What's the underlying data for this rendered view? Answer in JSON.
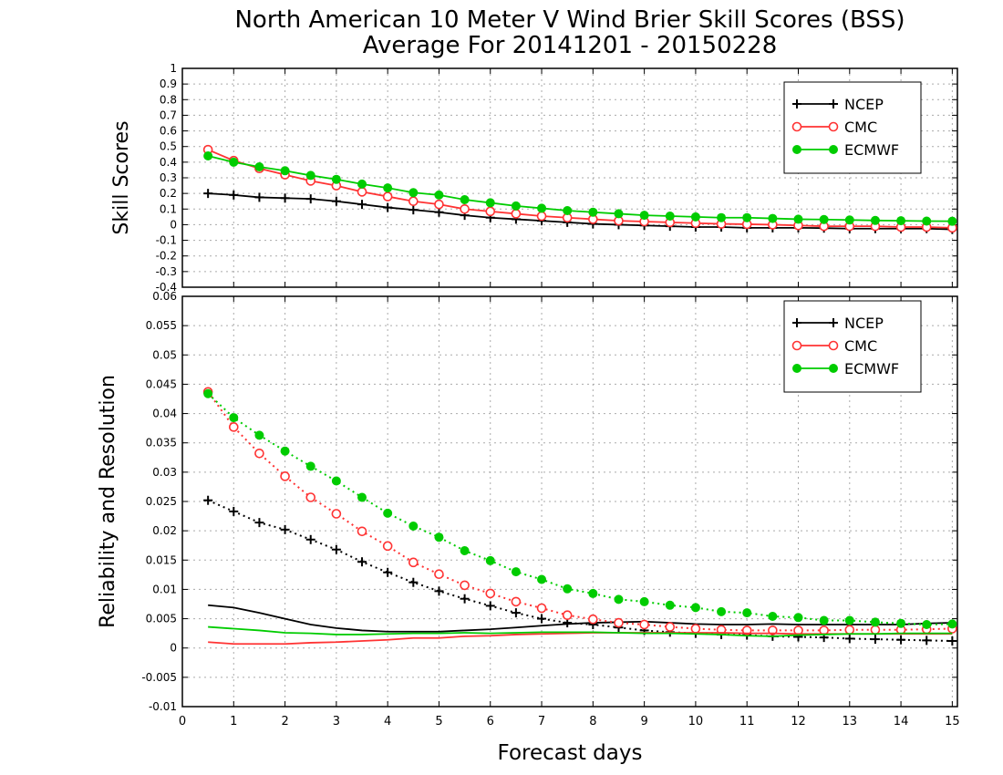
{
  "figure": {
    "title_line1": "North American 10 Meter V Wind Brier Skill Scores (BSS)",
    "title_line2": "Average For 20141201 - 20150228",
    "xlabel": "Forecast days",
    "x_ticks": [
      0,
      1,
      2,
      3,
      4,
      5,
      6,
      7,
      8,
      9,
      10,
      11,
      12,
      13,
      14,
      15
    ],
    "xlim": [
      0,
      15.1
    ]
  },
  "chart_data": [
    {
      "type": "line",
      "panel": "top",
      "ylabel": "Skill Scores",
      "ylim": [
        -0.4,
        1
      ],
      "y_ticks": [
        -0.4,
        -0.3,
        -0.2,
        -0.1,
        0,
        0.1,
        0.2,
        0.3,
        0.4,
        0.5,
        0.6,
        0.7,
        0.8,
        0.9,
        1
      ],
      "y_tick_labels": [
        "-0.4",
        "-0.3",
        "-0.2",
        "-0.1",
        "0",
        "0.1",
        "0.2",
        "0.3",
        "0.4",
        "0.5",
        "0.6",
        "0.7",
        "0.8",
        "0.9",
        "1"
      ],
      "grid": true,
      "legend": "top-right",
      "x": [
        0.5,
        1,
        1.5,
        2,
        2.5,
        3,
        3.5,
        4,
        4.5,
        5,
        5.5,
        6,
        6.5,
        7,
        7.5,
        8,
        8.5,
        9,
        9.5,
        10,
        10.5,
        11,
        11.5,
        12,
        12.5,
        13,
        13.5,
        14,
        14.5,
        15
      ],
      "series": [
        {
          "name": "NCEP",
          "color": "#000000",
          "marker": "plus",
          "dash": "solid",
          "values": [
            0.2,
            0.19,
            0.175,
            0.17,
            0.165,
            0.15,
            0.13,
            0.11,
            0.095,
            0.08,
            0.06,
            0.045,
            0.035,
            0.025,
            0.015,
            0.005,
            0,
            -0.005,
            -0.01,
            -0.015,
            -0.015,
            -0.02,
            -0.02,
            -0.02,
            -0.022,
            -0.025,
            -0.025,
            -0.025,
            -0.025,
            -0.03
          ]
        },
        {
          "name": "CMC",
          "color": "#ff3333",
          "marker": "open-circle",
          "dash": "solid",
          "values": [
            0.48,
            0.41,
            0.36,
            0.32,
            0.28,
            0.25,
            0.21,
            0.18,
            0.15,
            0.13,
            0.1,
            0.085,
            0.07,
            0.055,
            0.045,
            0.035,
            0.025,
            0.02,
            0.015,
            0.01,
            0.005,
            0.003,
            0,
            -0.005,
            -0.01,
            -0.01,
            -0.01,
            -0.015,
            -0.015,
            -0.02
          ]
        },
        {
          "name": "ECMWF",
          "color": "#00cc00",
          "marker": "filled-circle",
          "dash": "solid",
          "values": [
            0.44,
            0.4,
            0.37,
            0.345,
            0.315,
            0.29,
            0.26,
            0.235,
            0.205,
            0.19,
            0.16,
            0.14,
            0.12,
            0.105,
            0.09,
            0.08,
            0.07,
            0.06,
            0.055,
            0.05,
            0.045,
            0.045,
            0.04,
            0.035,
            0.033,
            0.03,
            0.027,
            0.025,
            0.023,
            0.022
          ]
        }
      ]
    },
    {
      "type": "line",
      "panel": "bottom",
      "ylabel": "Reliability and Resolution",
      "ylim": [
        -0.01,
        0.06
      ],
      "y_ticks": [
        -0.01,
        -0.005,
        0,
        0.005,
        0.01,
        0.015,
        0.02,
        0.025,
        0.03,
        0.035,
        0.04,
        0.045,
        0.05,
        0.055,
        0.06
      ],
      "y_tick_labels": [
        "-0.01",
        "-0.005",
        "0",
        "0.005",
        "0.01",
        "0.015",
        "0.02",
        "0.025",
        "0.03",
        "0.035",
        "0.04",
        "0.045",
        "0.05",
        "0.055",
        "0.06"
      ],
      "grid": true,
      "legend": "top-right",
      "legend_entries": [
        {
          "name": "NCEP",
          "color": "#000000",
          "marker": "plus"
        },
        {
          "name": "CMC",
          "color": "#ff3333",
          "marker": "open-circle"
        },
        {
          "name": "ECMWF",
          "color": "#00cc00",
          "marker": "filled-circle"
        }
      ],
      "x": [
        0.5,
        1,
        1.5,
        2,
        2.5,
        3,
        3.5,
        4,
        4.5,
        5,
        5.5,
        6,
        6.5,
        7,
        7.5,
        8,
        8.5,
        9,
        9.5,
        10,
        10.5,
        11,
        11.5,
        12,
        12.5,
        13,
        13.5,
        14,
        14.5,
        15
      ],
      "series": [
        {
          "color": "#000000",
          "marker": "plus",
          "dash": "dotted",
          "values": [
            0.0252,
            0.0233,
            0.0214,
            0.0202,
            0.0185,
            0.0168,
            0.0147,
            0.0129,
            0.0112,
            0.0097,
            0.0084,
            0.0072,
            0.006,
            0.005,
            0.0043,
            0.004,
            0.0035,
            0.003,
            0.0027,
            0.0025,
            0.0023,
            0.0022,
            0.002,
            0.0019,
            0.0018,
            0.0016,
            0.0015,
            0.0014,
            0.0013,
            0.0012
          ]
        },
        {
          "color": "#000000",
          "marker": "none",
          "dash": "solid",
          "values": [
            0.0073,
            0.0069,
            0.006,
            0.005,
            0.004,
            0.0034,
            0.003,
            0.0028,
            0.0028,
            0.0028,
            0.003,
            0.0032,
            0.0035,
            0.0038,
            0.0041,
            0.0043,
            0.0044,
            0.0045,
            0.0043,
            0.0041,
            0.004,
            0.004,
            0.0041,
            0.004,
            0.004,
            0.004,
            0.004,
            0.004,
            0.0042,
            0.0043
          ]
        },
        {
          "color": "#ff3333",
          "marker": "open-circle",
          "dash": "dotted",
          "values": [
            0.0437,
            0.0377,
            0.0332,
            0.0293,
            0.0257,
            0.0229,
            0.0199,
            0.0174,
            0.0146,
            0.0126,
            0.0107,
            0.0093,
            0.0079,
            0.0068,
            0.0056,
            0.0049,
            0.0043,
            0.004,
            0.0036,
            0.0033,
            0.0031,
            0.003,
            0.003,
            0.003,
            0.003,
            0.0031,
            0.0031,
            0.0031,
            0.0032,
            0.0033
          ]
        },
        {
          "color": "#ff3333",
          "marker": "none",
          "dash": "solid",
          "values": [
            0.001,
            0.0007,
            0.0007,
            0.0007,
            0.0009,
            0.001,
            0.0012,
            0.0014,
            0.0017,
            0.0017,
            0.002,
            0.0021,
            0.0023,
            0.0024,
            0.0025,
            0.0026,
            0.0026,
            0.0026,
            0.0026,
            0.0026,
            0.0026,
            0.0025,
            0.0025,
            0.0024,
            0.0024,
            0.0024,
            0.0024,
            0.0024,
            0.0024,
            0.0024
          ]
        },
        {
          "color": "#00cc00",
          "marker": "filled-circle",
          "dash": "dotted",
          "values": [
            0.0434,
            0.0393,
            0.0363,
            0.0336,
            0.031,
            0.0285,
            0.0257,
            0.023,
            0.0208,
            0.0189,
            0.0166,
            0.0149,
            0.013,
            0.0117,
            0.0101,
            0.0093,
            0.0083,
            0.0079,
            0.0073,
            0.0069,
            0.0062,
            0.006,
            0.0054,
            0.0052,
            0.0047,
            0.0047,
            0.0044,
            0.0042,
            0.004,
            0.0041
          ]
        },
        {
          "color": "#00cc00",
          "marker": "none",
          "dash": "solid",
          "values": [
            0.0036,
            0.0033,
            0.003,
            0.0026,
            0.0025,
            0.0023,
            0.0023,
            0.0024,
            0.0025,
            0.0025,
            0.0026,
            0.0025,
            0.0026,
            0.0027,
            0.0027,
            0.0027,
            0.0026,
            0.0025,
            0.0025,
            0.0024,
            0.0023,
            0.0021,
            0.002,
            0.0022,
            0.0023,
            0.0024,
            0.0024,
            0.0025,
            0.0025,
            0.0025
          ]
        }
      ]
    }
  ]
}
